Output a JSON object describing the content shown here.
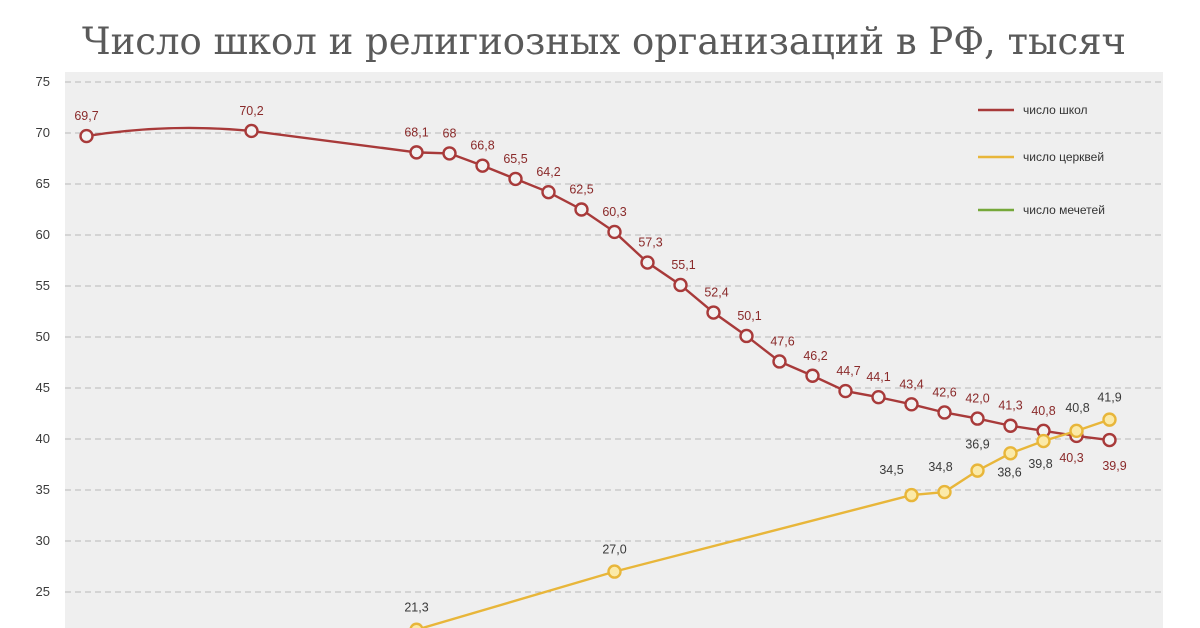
{
  "colors": {
    "schools": "#a83a3a",
    "churches": "#e8b63a",
    "mosques": "#76a83a",
    "plot_bg": "#efefef",
    "grid": "#b8b8b8"
  },
  "chart_data": {
    "type": "line",
    "title": "Число школ и религиозных организаций в РФ, тысяч",
    "xlabel": "",
    "ylabel": "",
    "ylim": [
      20,
      75
    ],
    "yticks": [
      25,
      30,
      35,
      40,
      45,
      50,
      55,
      60,
      65,
      70,
      75
    ],
    "grid": true,
    "legend_position": "top-right",
    "legend": [
      "число школ",
      "число церквей",
      "число мечетей"
    ],
    "x": [
      1,
      6,
      11,
      12,
      13,
      14,
      15,
      16,
      17,
      18,
      19,
      20,
      21,
      22,
      23,
      24,
      25,
      26,
      27,
      28,
      29,
      30,
      31,
      32
    ],
    "series": [
      {
        "name": "число школ",
        "color_key": "schools",
        "x": [
          1,
          6,
          11,
          12,
          13,
          14,
          15,
          16,
          17,
          18,
          19,
          20,
          21,
          22,
          23,
          24,
          25,
          26,
          27,
          28,
          29,
          30,
          31,
          32
        ],
        "values": [
          69.7,
          70.2,
          68.1,
          68,
          66.8,
          65.5,
          64.2,
          62.5,
          60.3,
          57.3,
          55.1,
          52.4,
          50.1,
          47.6,
          46.2,
          44.7,
          44.1,
          43.4,
          42.6,
          42.0,
          41.3,
          40.8,
          40.3,
          39.9
        ],
        "labels": [
          "69,7",
          "70,2",
          "68,1",
          "68",
          "66,8",
          "65,5",
          "64,2",
          "62,5",
          "60,3",
          "57,3",
          "55,1",
          "52,4",
          "50,1",
          "47,6",
          "46,2",
          "44,7",
          "44,1",
          "43,4",
          "42,6",
          "42,0",
          "41,3",
          "40,8",
          "40,3",
          "39,9"
        ]
      },
      {
        "name": "число церквей",
        "color_key": "churches",
        "x": [
          11,
          17,
          26,
          27,
          28,
          29,
          30,
          31,
          32
        ],
        "values": [
          21.3,
          27.0,
          34.5,
          34.8,
          36.9,
          38.6,
          39.8,
          40.8,
          41.9
        ],
        "labels": [
          "21,3",
          "27,0",
          "34,5",
          "34,8",
          "36,9",
          "38,6",
          "39,8",
          "40,8",
          "41,9"
        ]
      },
      {
        "name": "число мечетей",
        "color_key": "mosques",
        "x": [],
        "values": [],
        "labels": []
      }
    ]
  }
}
